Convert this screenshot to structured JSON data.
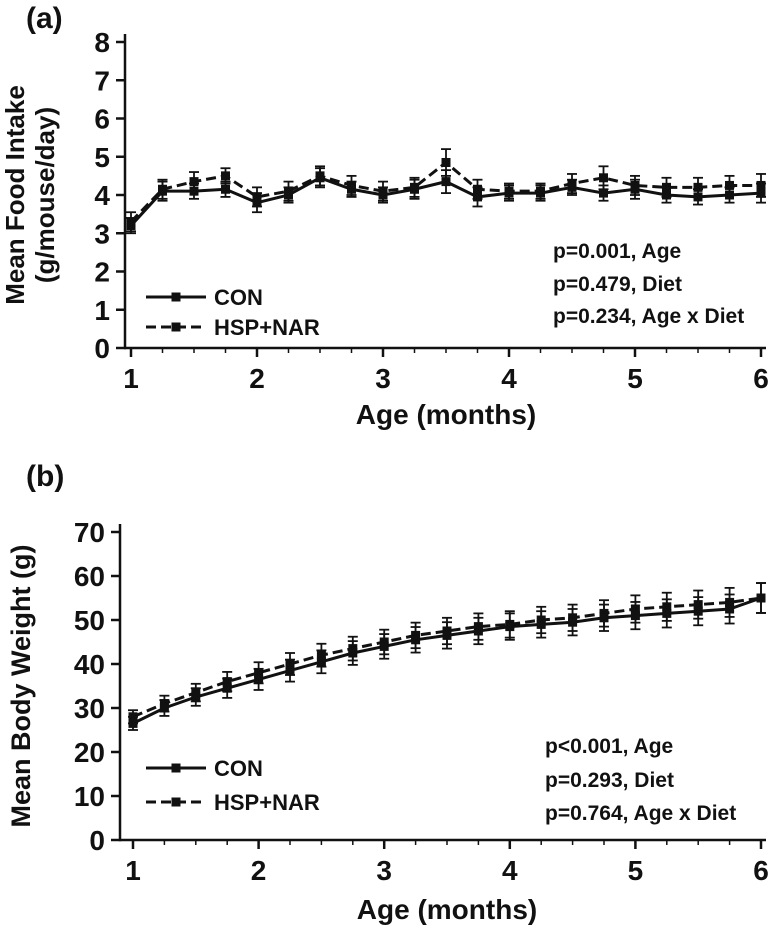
{
  "colors": {
    "line": "#111111",
    "text": "#111111",
    "background": "#ffffff"
  },
  "chart_data": [
    {
      "type": "line",
      "panel_label": "(a)",
      "ylabel_lines": [
        "Mean Food Intake",
        "(g/mouse/day)"
      ],
      "xlabel": "Age (months)",
      "xlim": [
        1,
        6
      ],
      "ylim": [
        0,
        8
      ],
      "yticks": [
        0,
        1,
        2,
        3,
        4,
        5,
        6,
        7,
        8
      ],
      "xticks": [
        1,
        2,
        3,
        4,
        5,
        6
      ],
      "x_minor_step": 0.25,
      "x": [
        1,
        1.25,
        1.5,
        1.75,
        2,
        2.25,
        2.5,
        2.75,
        3,
        3.25,
        3.5,
        3.75,
        4,
        4.25,
        4.5,
        4.75,
        5,
        5.25,
        5.5,
        5.75,
        6
      ],
      "series": [
        {
          "name": "CON",
          "style": "solid",
          "values": [
            3.2,
            4.1,
            4.1,
            4.15,
            3.8,
            4.0,
            4.45,
            4.15,
            4.0,
            4.15,
            4.35,
            3.95,
            4.05,
            4.05,
            4.2,
            4.05,
            4.15,
            4.0,
            3.95,
            4.0,
            4.05
          ],
          "errors": [
            0.2,
            0.25,
            0.2,
            0.2,
            0.25,
            0.2,
            0.25,
            0.2,
            0.2,
            0.25,
            0.3,
            0.25,
            0.2,
            0.2,
            0.2,
            0.2,
            0.25,
            0.2,
            0.2,
            0.2,
            0.25
          ]
        },
        {
          "name": "HSP+NAR",
          "style": "dashed",
          "values": [
            3.3,
            4.15,
            4.35,
            4.5,
            3.95,
            4.1,
            4.5,
            4.25,
            4.1,
            4.2,
            4.85,
            4.15,
            4.1,
            4.1,
            4.3,
            4.45,
            4.25,
            4.2,
            4.2,
            4.25,
            4.25
          ],
          "errors": [
            0.25,
            0.25,
            0.25,
            0.2,
            0.25,
            0.25,
            0.25,
            0.25,
            0.25,
            0.25,
            0.35,
            0.25,
            0.2,
            0.2,
            0.25,
            0.3,
            0.25,
            0.25,
            0.25,
            0.25,
            0.3
          ]
        }
      ],
      "legend": [
        "CON",
        "HSP+NAR"
      ],
      "stats": [
        "p=0.001, Age",
        "p=0.479, Diet",
        "p=0.234, Age x Diet"
      ]
    },
    {
      "type": "line",
      "panel_label": "(b)",
      "ylabel_lines": [
        "Mean Body Weight (g)"
      ],
      "xlabel": "Age (months)",
      "xlim": [
        1,
        6
      ],
      "ylim": [
        0,
        70
      ],
      "yticks": [
        0,
        10,
        20,
        30,
        40,
        50,
        60,
        70
      ],
      "xticks": [
        1,
        2,
        3,
        4,
        5,
        6
      ],
      "x_minor_step": 0.25,
      "x": [
        1,
        1.25,
        1.5,
        1.75,
        2,
        2.25,
        2.5,
        2.75,
        3,
        3.25,
        3.5,
        3.75,
        4,
        4.25,
        4.5,
        4.75,
        5,
        5.25,
        5.5,
        5.75,
        6
      ],
      "series": [
        {
          "name": "CON",
          "style": "solid",
          "values": [
            26.5,
            30,
            32.5,
            34.5,
            36.5,
            38.5,
            40.5,
            42.5,
            44,
            45.5,
            46.5,
            47.5,
            48.5,
            49,
            49.5,
            50.5,
            51,
            51.5,
            52,
            52.5,
            55
          ],
          "errors": [
            1.5,
            1.8,
            2.0,
            2.2,
            2.4,
            2.5,
            2.6,
            2.7,
            2.8,
            2.9,
            3.0,
            3.0,
            3.0,
            3.0,
            3.0,
            3.0,
            3.1,
            3.2,
            3.2,
            3.3,
            3.4
          ]
        },
        {
          "name": "HSP+NAR",
          "style": "dashed",
          "values": [
            28,
            31,
            33.5,
            36,
            38,
            40,
            42,
            43.5,
            45,
            46.5,
            47.5,
            48.5,
            49,
            50,
            50.5,
            51.5,
            52.5,
            53,
            53.5,
            54,
            55
          ],
          "errors": [
            1.5,
            1.8,
            2.0,
            2.2,
            2.4,
            2.5,
            2.6,
            2.7,
            2.8,
            2.9,
            3.0,
            3.0,
            3.0,
            3.0,
            3.0,
            3.0,
            3.1,
            3.2,
            3.2,
            3.3,
            3.4
          ]
        }
      ],
      "legend": [
        "CON",
        "HSP+NAR"
      ],
      "stats": [
        "p<0.001, Age",
        "p=0.293, Diet",
        "p=0.764, Age x Diet"
      ]
    }
  ]
}
